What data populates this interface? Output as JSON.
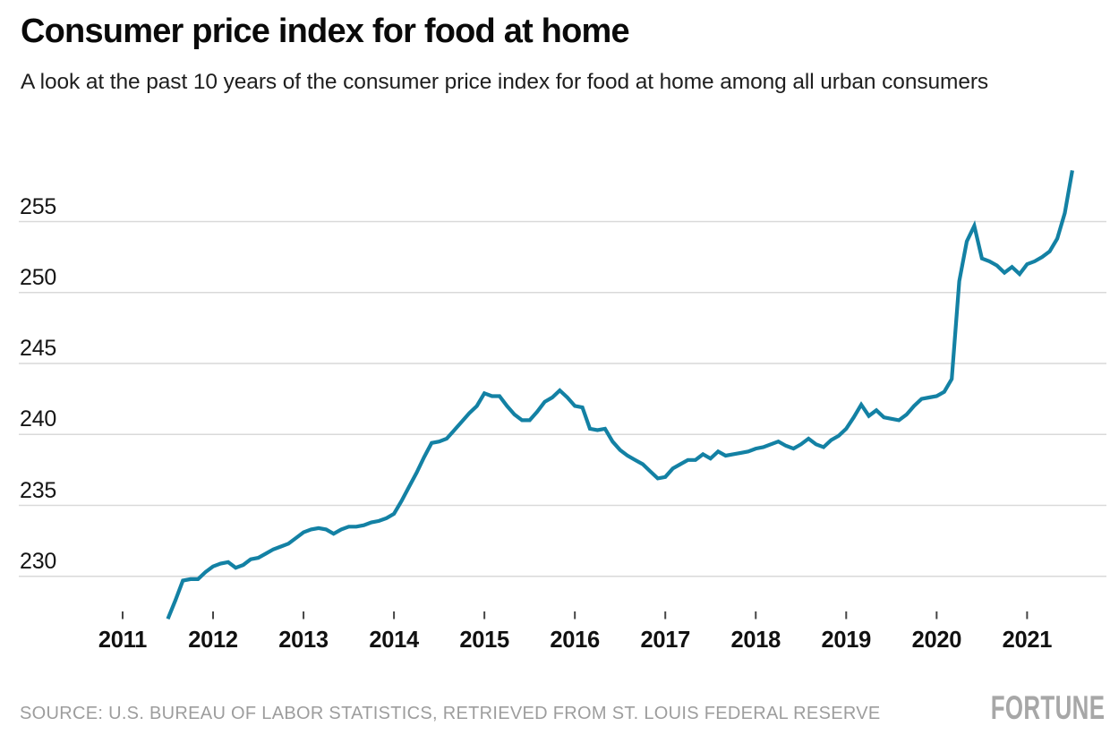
{
  "chart_data": {
    "type": "line",
    "title": "Consumer price index for food at home",
    "subtitle": "A look at the past 10 years of the consumer price index for food at home among all urban consumers",
    "xlabel": "",
    "ylabel": "",
    "grid": "horizontal",
    "legend_position": "none",
    "y_axis": {
      "ticks": [
        255,
        250,
        245,
        240,
        235,
        230
      ],
      "range_shown": [
        226,
        259
      ]
    },
    "x_axis": {
      "tick_labels": [
        "2011",
        "2012",
        "2013",
        "2014",
        "2015",
        "2016",
        "2017",
        "2018",
        "2019",
        "2020",
        "2021"
      ]
    },
    "series": [
      {
        "name": "CPI for food at home, all urban consumers",
        "color": "#1381a4",
        "frequency": "monthly",
        "points": [
          [
            "2011-07",
            227.0
          ],
          [
            "2011-08",
            228.3
          ],
          [
            "2011-09",
            229.7
          ],
          [
            "2011-10",
            229.8
          ],
          [
            "2011-11",
            229.8
          ],
          [
            "2011-12",
            230.3
          ],
          [
            "2012-01",
            230.7
          ],
          [
            "2012-02",
            230.9
          ],
          [
            "2012-03",
            231.0
          ],
          [
            "2012-04",
            230.6
          ],
          [
            "2012-05",
            230.8
          ],
          [
            "2012-06",
            231.2
          ],
          [
            "2012-07",
            231.3
          ],
          [
            "2012-08",
            231.6
          ],
          [
            "2012-09",
            231.9
          ],
          [
            "2012-10",
            232.1
          ],
          [
            "2012-11",
            232.3
          ],
          [
            "2012-12",
            232.7
          ],
          [
            "2013-01",
            233.1
          ],
          [
            "2013-02",
            233.3
          ],
          [
            "2013-03",
            233.4
          ],
          [
            "2013-04",
            233.3
          ],
          [
            "2013-05",
            233.0
          ],
          [
            "2013-06",
            233.3
          ],
          [
            "2013-07",
            233.5
          ],
          [
            "2013-08",
            233.5
          ],
          [
            "2013-09",
            233.6
          ],
          [
            "2013-10",
            233.8
          ],
          [
            "2013-11",
            233.9
          ],
          [
            "2013-12",
            234.1
          ],
          [
            "2014-01",
            234.4
          ],
          [
            "2014-02",
            235.3
          ],
          [
            "2014-03",
            236.3
          ],
          [
            "2014-04",
            237.3
          ],
          [
            "2014-05",
            238.4
          ],
          [
            "2014-06",
            239.4
          ],
          [
            "2014-07",
            239.5
          ],
          [
            "2014-08",
            239.7
          ],
          [
            "2014-09",
            240.3
          ],
          [
            "2014-10",
            240.9
          ],
          [
            "2014-11",
            241.5
          ],
          [
            "2014-12",
            242.0
          ],
          [
            "2015-01",
            242.9
          ],
          [
            "2015-02",
            242.7
          ],
          [
            "2015-03",
            242.7
          ],
          [
            "2015-04",
            242.0
          ],
          [
            "2015-05",
            241.4
          ],
          [
            "2015-06",
            241.0
          ],
          [
            "2015-07",
            241.0
          ],
          [
            "2015-08",
            241.6
          ],
          [
            "2015-09",
            242.3
          ],
          [
            "2015-10",
            242.6
          ],
          [
            "2015-11",
            243.1
          ],
          [
            "2015-12",
            242.6
          ],
          [
            "2016-01",
            242.0
          ],
          [
            "2016-02",
            241.9
          ],
          [
            "2016-03",
            240.4
          ],
          [
            "2016-04",
            240.3
          ],
          [
            "2016-05",
            240.4
          ],
          [
            "2016-06",
            239.5
          ],
          [
            "2016-07",
            238.9
          ],
          [
            "2016-08",
            238.5
          ],
          [
            "2016-09",
            238.2
          ],
          [
            "2016-10",
            237.9
          ],
          [
            "2016-11",
            237.4
          ],
          [
            "2016-12",
            236.9
          ],
          [
            "2017-01",
            237.0
          ],
          [
            "2017-02",
            237.6
          ],
          [
            "2017-03",
            237.9
          ],
          [
            "2017-04",
            238.2
          ],
          [
            "2017-05",
            238.2
          ],
          [
            "2017-06",
            238.6
          ],
          [
            "2017-07",
            238.3
          ],
          [
            "2017-08",
            238.8
          ],
          [
            "2017-09",
            238.5
          ],
          [
            "2017-10",
            238.6
          ],
          [
            "2017-11",
            238.7
          ],
          [
            "2017-12",
            238.8
          ],
          [
            "2018-01",
            239.0
          ],
          [
            "2018-02",
            239.1
          ],
          [
            "2018-03",
            239.3
          ],
          [
            "2018-04",
            239.5
          ],
          [
            "2018-05",
            239.2
          ],
          [
            "2018-06",
            239.0
          ],
          [
            "2018-07",
            239.3
          ],
          [
            "2018-08",
            239.7
          ],
          [
            "2018-09",
            239.3
          ],
          [
            "2018-10",
            239.1
          ],
          [
            "2018-11",
            239.6
          ],
          [
            "2018-12",
            239.9
          ],
          [
            "2019-01",
            240.4
          ],
          [
            "2019-02",
            241.2
          ],
          [
            "2019-03",
            242.1
          ],
          [
            "2019-04",
            241.3
          ],
          [
            "2019-05",
            241.7
          ],
          [
            "2019-06",
            241.2
          ],
          [
            "2019-07",
            241.1
          ],
          [
            "2019-08",
            241.0
          ],
          [
            "2019-09",
            241.4
          ],
          [
            "2019-10",
            242.0
          ],
          [
            "2019-11",
            242.5
          ],
          [
            "2019-12",
            242.6
          ],
          [
            "2020-01",
            242.7
          ],
          [
            "2020-02",
            243.0
          ],
          [
            "2020-03",
            243.9
          ],
          [
            "2020-04",
            250.8
          ],
          [
            "2020-05",
            253.6
          ],
          [
            "2020-06",
            254.7
          ],
          [
            "2020-07",
            252.4
          ],
          [
            "2020-08",
            252.2
          ],
          [
            "2020-09",
            251.9
          ],
          [
            "2020-10",
            251.4
          ],
          [
            "2020-11",
            251.8
          ],
          [
            "2020-12",
            251.3
          ],
          [
            "2021-01",
            252.0
          ],
          [
            "2021-02",
            252.2
          ],
          [
            "2021-03",
            252.5
          ],
          [
            "2021-04",
            252.9
          ],
          [
            "2021-05",
            253.8
          ],
          [
            "2021-06",
            255.6
          ],
          [
            "2021-07",
            258.6
          ]
        ]
      }
    ]
  },
  "footer": {
    "source": "SOURCE: U.S. BUREAU OF LABOR STATISTICS, RETRIEVED FROM ST. LOUIS FEDERAL RESERVE",
    "brand": "FORTUNE"
  },
  "colors": {
    "line": "#1381a4",
    "grid": "#d9d9d9",
    "tick": "#454545",
    "title": "#0a0a0a",
    "subtitle": "#1e1e1e",
    "axis_text": "#151515",
    "source_text": "#9d9d9d",
    "brand_text": "#a7a7a7",
    "background": "#ffffff"
  }
}
